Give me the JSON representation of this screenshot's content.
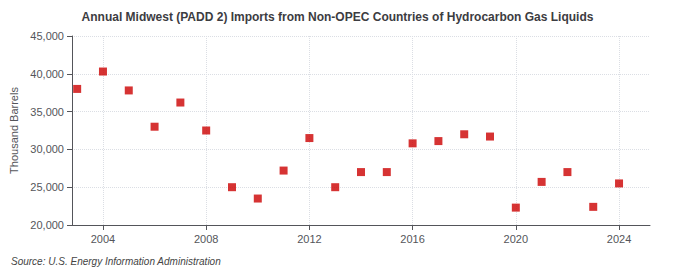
{
  "chart_data": {
    "type": "scatter",
    "title": "Annual Midwest (PADD 2) Imports from Non-OPEC Countries of Hydrocarbon Gas Liquids",
    "ylabel": "Thousand Barrels",
    "source": "Source: U.S. Energy Information Administration",
    "x": [
      2003,
      2004,
      2005,
      2006,
      2007,
      2008,
      2009,
      2010,
      2011,
      2012,
      2013,
      2014,
      2015,
      2016,
      2017,
      2018,
      2019,
      2020,
      2021,
      2022,
      2023,
      2024
    ],
    "values": [
      38000,
      40300,
      37800,
      33000,
      36200,
      32500,
      25000,
      23500,
      27200,
      31500,
      25000,
      27000,
      27000,
      30800,
      31100,
      32000,
      31700,
      22300,
      25700,
      27000,
      22400,
      25500
    ],
    "color": "#cc0000",
    "marker": "square",
    "xlim": [
      2002.8,
      2025.2
    ],
    "xticks": [
      2004,
      2008,
      2012,
      2016,
      2020,
      2024
    ],
    "ylim": [
      20000,
      45000
    ],
    "yticks": [
      {
        "value": 20000,
        "label": "20,000"
      },
      {
        "value": 25000,
        "label": "25,000"
      },
      {
        "value": 30000,
        "label": "30,000"
      },
      {
        "value": 35000,
        "label": "35,000"
      },
      {
        "value": 40000,
        "label": "40,000"
      },
      {
        "value": 45000,
        "label": "45,000"
      }
    ],
    "grid": true
  }
}
